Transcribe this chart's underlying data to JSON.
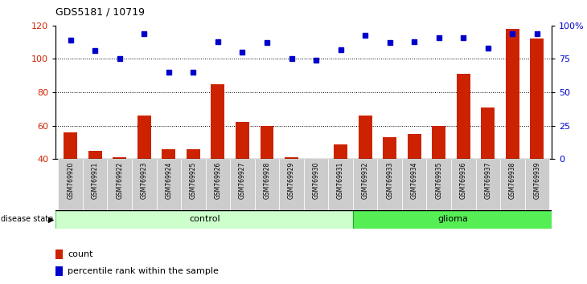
{
  "title": "GDS5181 / 10719",
  "samples": [
    "GSM769920",
    "GSM769921",
    "GSM769922",
    "GSM769923",
    "GSM769924",
    "GSM769925",
    "GSM769926",
    "GSM769927",
    "GSM769928",
    "GSM769929",
    "GSM769930",
    "GSM769931",
    "GSM769932",
    "GSM769933",
    "GSM769934",
    "GSM769935",
    "GSM769936",
    "GSM769937",
    "GSM769938",
    "GSM769939"
  ],
  "counts": [
    56,
    45,
    41,
    66,
    46,
    46,
    85,
    62,
    60,
    41,
    40,
    49,
    66,
    53,
    55,
    60,
    91,
    71,
    118,
    112
  ],
  "percentiles": [
    89,
    81,
    75,
    94,
    65,
    65,
    88,
    80,
    87,
    75,
    74,
    82,
    93,
    87,
    88,
    91,
    91,
    83,
    94,
    94
  ],
  "ylim_left": [
    40,
    120
  ],
  "ylim_right": [
    0,
    100
  ],
  "yticks_left": [
    40,
    60,
    80,
    100,
    120
  ],
  "yticks_right": [
    0,
    25,
    50,
    75,
    100
  ],
  "ytick_labels_right": [
    "0",
    "25",
    "50",
    "75",
    "100%"
  ],
  "grid_values": [
    60,
    80,
    100
  ],
  "bar_color": "#cc2200",
  "dot_color": "#0000cc",
  "groups": [
    {
      "label": "control",
      "start": 0,
      "end": 12,
      "color": "#ccffcc",
      "edge": "#66cc66"
    },
    {
      "label": "glioma",
      "start": 12,
      "end": 20,
      "color": "#55ee55",
      "edge": "#22aa22"
    }
  ],
  "legend_items": [
    {
      "label": "count",
      "color": "#cc2200"
    },
    {
      "label": "percentile rank within the sample",
      "color": "#0000cc"
    }
  ],
  "tick_bg": "#cccccc",
  "disease_state_label": "disease state"
}
